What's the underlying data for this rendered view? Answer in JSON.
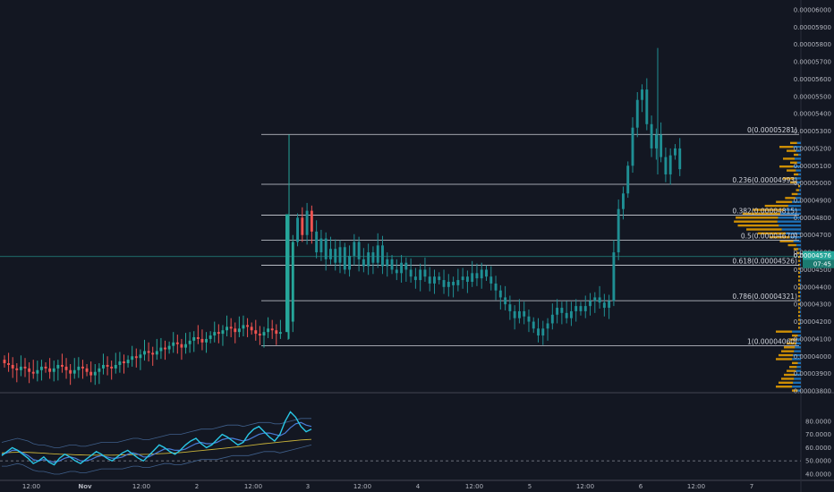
{
  "chart_data": {
    "type": "candlestick",
    "price_axis": {
      "min": 3.8e-05,
      "max": 6e-05,
      "ticks": [
        "0.00006000",
        "0.00005900",
        "0.00005800",
        "0.00005700",
        "0.00005600",
        "0.00005500",
        "0.00005400",
        "0.00005300",
        "0.00005200",
        "0.00005100",
        "0.00005000",
        "0.00004900",
        "0.00004800",
        "0.00004700",
        "0.00004600",
        "0.00004500",
        "0.00004400",
        "0.00004300",
        "0.00004200",
        "0.00004100",
        "0.00004000",
        "0.00003900",
        "0.00003800"
      ],
      "tick_values": [
        6e-05,
        5.9e-05,
        5.8e-05,
        5.7e-05,
        5.6e-05,
        5.5e-05,
        5.4e-05,
        5.3e-05,
        5.2e-05,
        5.1e-05,
        5e-05,
        4.9e-05,
        4.8e-05,
        4.7e-05,
        4.6e-05,
        4.5e-05,
        4.4e-05,
        4.3e-05,
        4.2e-05,
        4.1e-05,
        4e-05,
        3.9e-05,
        3.8e-05
      ],
      "current_price_label": "0.00004576",
      "current_price": 4.576e-05,
      "countdown_label": "07:45"
    },
    "fib_levels": [
      {
        "label": "0(0.00005281)",
        "value": 5.281e-05
      },
      {
        "label": "0.236(0.00004993)",
        "value": 4.993e-05
      },
      {
        "label": "0.382(0.00004815)",
        "value": 4.815e-05
      },
      {
        "label": "0.5(0.00004670)",
        "value": 4.67e-05
      },
      {
        "label": "0.618(0.00004526)",
        "value": 4.526e-05
      },
      {
        "label": "0.786(0.00004321)",
        "value": 4.321e-05
      },
      {
        "label": "1(0.00004060)",
        "value": 4.06e-05
      }
    ],
    "time_axis": {
      "labels": [
        "12:00",
        "Nov",
        "12:00",
        "2",
        "12:00",
        "3",
        "12:00",
        "4",
        "12:00",
        "5",
        "12:00",
        "6",
        "12:00",
        "7"
      ]
    },
    "oscillator": {
      "min": 40,
      "max": 90,
      "ticks": [
        "80.0000",
        "70.0000",
        "60.0000",
        "50.0000",
        "40.0000"
      ],
      "tick_values": [
        80,
        70,
        60,
        50,
        40
      ],
      "dashed_level": 50,
      "fast": [
        54,
        57,
        60,
        58,
        55,
        52,
        48,
        50,
        53,
        49,
        47,
        52,
        55,
        53,
        50,
        48,
        51,
        54,
        57,
        55,
        52,
        50,
        53,
        56,
        58,
        55,
        52,
        50,
        54,
        58,
        62,
        60,
        57,
        55,
        58,
        62,
        65,
        67,
        63,
        60,
        62,
        66,
        70,
        68,
        65,
        62,
        64,
        70,
        74,
        76,
        72,
        68,
        65,
        70,
        80,
        87,
        83,
        76,
        72,
        74
      ],
      "slow": [
        55,
        56,
        58,
        58,
        56,
        54,
        51,
        50,
        51,
        50,
        49,
        50,
        52,
        53,
        52,
        50,
        50,
        51,
        53,
        54,
        53,
        52,
        52,
        53,
        55,
        56,
        55,
        53,
        53,
        55,
        57,
        59,
        59,
        58,
        58,
        59,
        61,
        63,
        64,
        63,
        63,
        64,
        66,
        67,
        67,
        66,
        65,
        66,
        68,
        70,
        71,
        71,
        70,
        69,
        71,
        75,
        78,
        79,
        77,
        76
      ],
      "avg": [
        56,
        56.2,
        56.4,
        56.5,
        56.5,
        56.4,
        56.2,
        56,
        55.8,
        55.5,
        55.3,
        55.1,
        55,
        54.8,
        54.6,
        54.5,
        54.4,
        54.3,
        54.3,
        54.3,
        54.3,
        54.3,
        54.4,
        54.5,
        54.6,
        54.7,
        54.8,
        54.9,
        55,
        55.2,
        55.4,
        55.6,
        55.8,
        56,
        56.3,
        56.6,
        57,
        57.4,
        57.8,
        58.2,
        58.6,
        59,
        59.4,
        59.8,
        60.2,
        60.6,
        61,
        61.5,
        62,
        62.5,
        63,
        63.4,
        63.8,
        64.2,
        64.6,
        65,
        65.4,
        65.8,
        66,
        66.2
      ],
      "upper_band": [
        64,
        65,
        66,
        67,
        66,
        65,
        63,
        62,
        62,
        61,
        60,
        60,
        61,
        62,
        62,
        61,
        61,
        62,
        63,
        64,
        64,
        64,
        64,
        65,
        66,
        67,
        67,
        66,
        66,
        67,
        68,
        69,
        70,
        70,
        70,
        71,
        72,
        73,
        74,
        74,
        74,
        75,
        76,
        77,
        77,
        77,
        76,
        77,
        78,
        79,
        79,
        79,
        78,
        78,
        79,
        80,
        81,
        82,
        82,
        82
      ],
      "lower_band": [
        46,
        46,
        47,
        48,
        47,
        45,
        43,
        42,
        42,
        41,
        40,
        40,
        41,
        42,
        42,
        41,
        41,
        42,
        43,
        44,
        44,
        44,
        44,
        44,
        45,
        46,
        46,
        45,
        45,
        46,
        47,
        48,
        48,
        47,
        47,
        48,
        49,
        50,
        51,
        51,
        51,
        51,
        52,
        53,
        54,
        54,
        54,
        54,
        55,
        56,
        57,
        57,
        57,
        56,
        57,
        58,
        59,
        60,
        61,
        62
      ]
    }
  }
}
